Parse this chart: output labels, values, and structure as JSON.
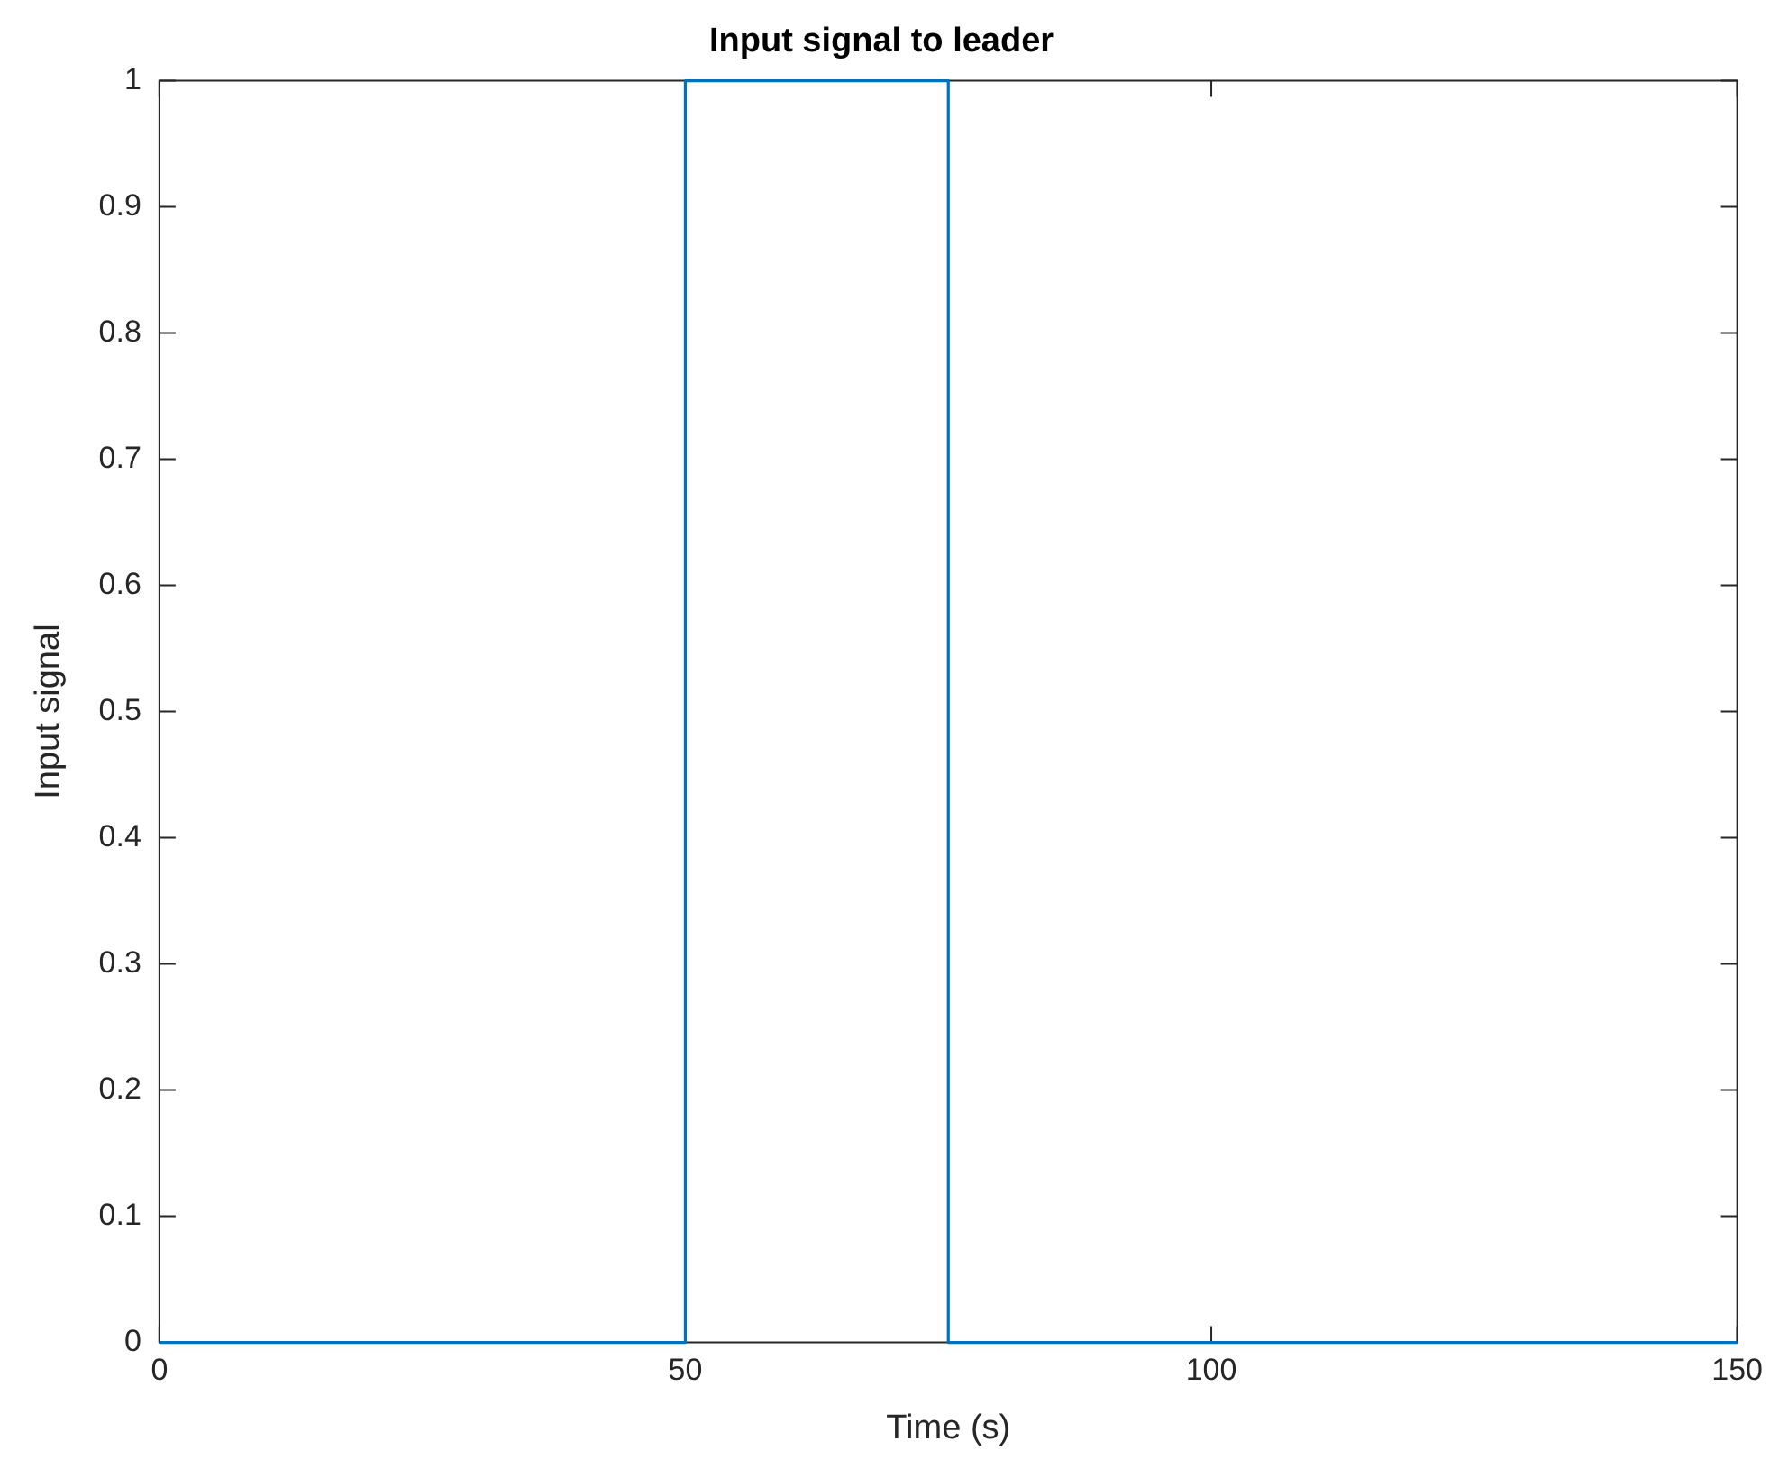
{
  "chart_data": {
    "type": "line",
    "title": "Input signal to leader",
    "xlabel": "Time (s)",
    "ylabel": "Input signal",
    "x": [
      0,
      50,
      50,
      75,
      75,
      150
    ],
    "series": [
      {
        "color": "#0072bd",
        "values": [
          0,
          0,
          1,
          1,
          0,
          0
        ]
      }
    ],
    "xlim": [
      0,
      150
    ],
    "xticks": [
      0,
      50,
      100,
      150
    ],
    "ylim": [
      0,
      1
    ],
    "yticks": [
      0,
      0.1,
      0.2,
      0.3,
      0.4,
      0.5,
      0.6,
      0.7,
      0.8,
      0.9,
      1
    ],
    "grid": false,
    "legend": false,
    "marker": "none",
    "line_style": "solid"
  }
}
